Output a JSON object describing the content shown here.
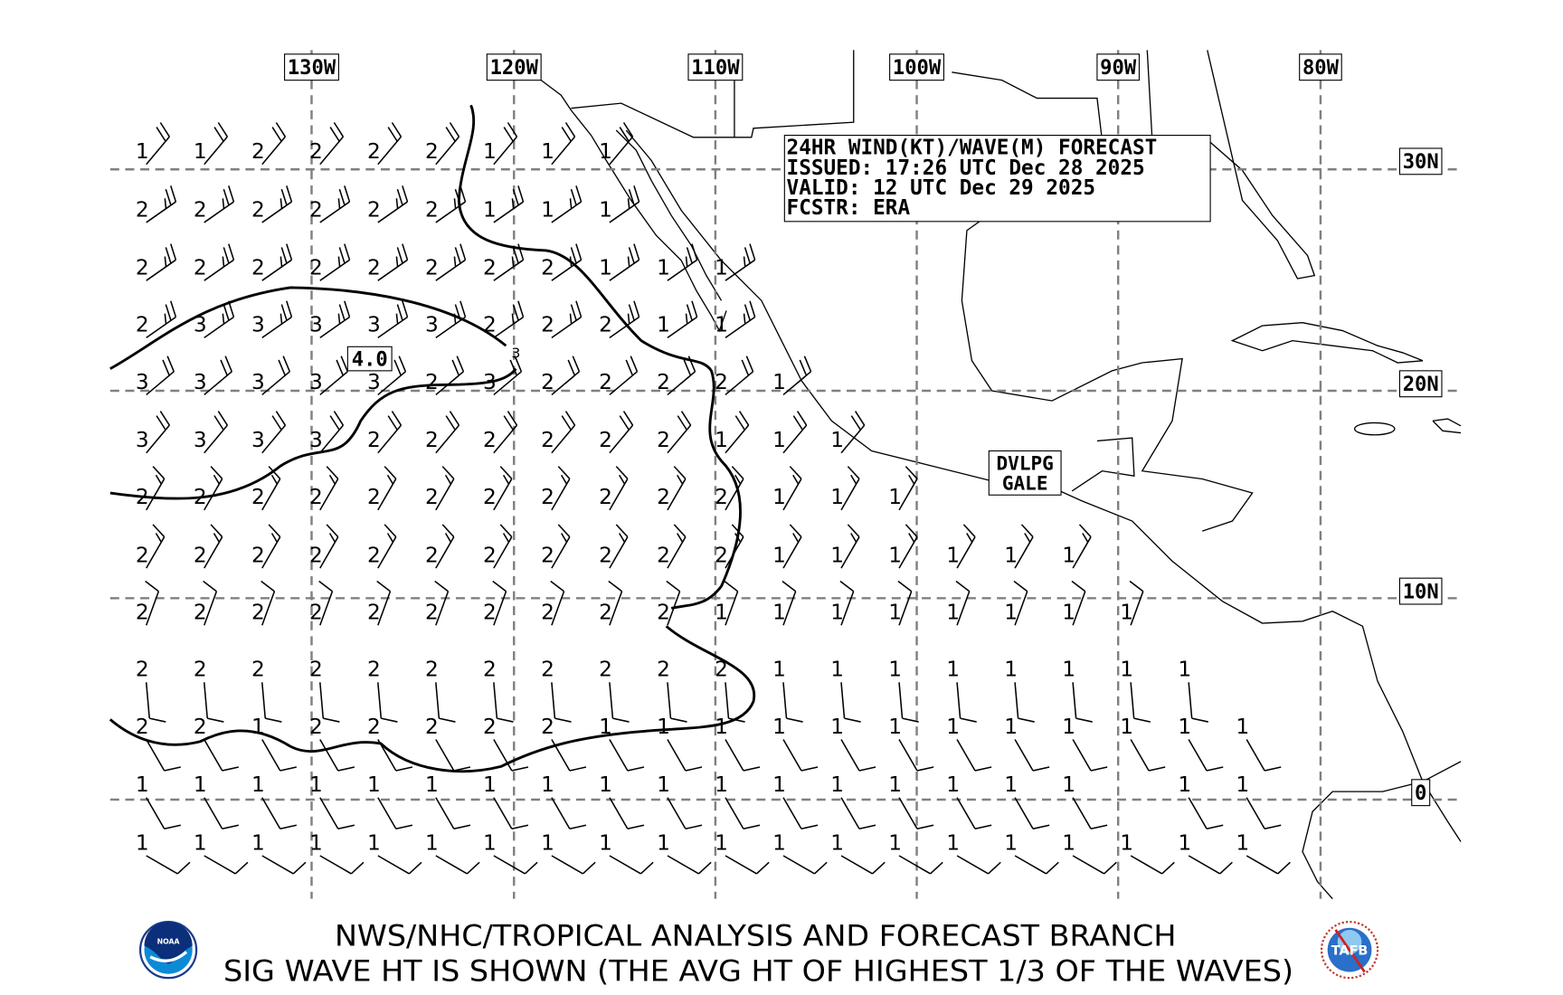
{
  "info_box": {
    "line1": "24HR WIND(KT)/WAVE(M) FORECAST",
    "line2": "ISSUED: 17:26 UTC Dec 28 2025",
    "line3": "VALID: 12 UTC Dec 29 2025",
    "line4": "FCSTR: ERA"
  },
  "longitude_labels": [
    "130W",
    "120W",
    "110W",
    "100W",
    "90W",
    "80W"
  ],
  "latitude_labels": [
    "30N",
    "20N",
    "10N",
    "0"
  ],
  "max_wave_label": "4.0",
  "contour_label": "3",
  "warning": {
    "line1": "DVLPG",
    "line2": "GALE"
  },
  "footer": {
    "line1": "NWS/NHC/TROPICAL ANALYSIS AND FORECAST BRANCH",
    "line2": "SIG WAVE HT IS SHOWN (THE AVG HT OF HIGHEST 1/3 OF THE WAVES)"
  },
  "logos": {
    "left": "NOAA",
    "right": "TAFB"
  },
  "wave_heights": [
    [
      1,
      1,
      2,
      2,
      2,
      2,
      1,
      1,
      1
    ],
    [
      2,
      2,
      2,
      2,
      2,
      2,
      1,
      1,
      1
    ],
    [
      2,
      2,
      2,
      2,
      2,
      2,
      2,
      2,
      1,
      1,
      1
    ],
    [
      2,
      3,
      3,
      3,
      3,
      3,
      2,
      2,
      2,
      1,
      1
    ],
    [
      3,
      3,
      3,
      3,
      3,
      2,
      3,
      2,
      2,
      2,
      2,
      1
    ],
    [
      3,
      3,
      3,
      3,
      2,
      2,
      2,
      2,
      2,
      2,
      1,
      1,
      1
    ],
    [
      2,
      2,
      2,
      2,
      2,
      2,
      2,
      2,
      2,
      2,
      2,
      1,
      1,
      1
    ],
    [
      2,
      2,
      2,
      2,
      2,
      2,
      2,
      2,
      2,
      2,
      2,
      1,
      1,
      1,
      1,
      1,
      1
    ],
    [
      2,
      2,
      2,
      2,
      2,
      2,
      2,
      2,
      2,
      2,
      1,
      1,
      1,
      1,
      1,
      1,
      1,
      1
    ],
    [
      2,
      2,
      2,
      2,
      2,
      2,
      2,
      2,
      2,
      2,
      2,
      1,
      1,
      1,
      1,
      1,
      1,
      1,
      1
    ],
    [
      2,
      2,
      1,
      2,
      2,
      2,
      2,
      2,
      1,
      1,
      1,
      1,
      1,
      1,
      1,
      1,
      1,
      1,
      1,
      1
    ],
    [
      1,
      1,
      1,
      1,
      1,
      1,
      1,
      1,
      1,
      1,
      1,
      1,
      1,
      1,
      1,
      1,
      1,
      null,
      1,
      1
    ],
    [
      1,
      1,
      1,
      1,
      1,
      1,
      1,
      1,
      1,
      1,
      1,
      1,
      1,
      1,
      1,
      1,
      1,
      1,
      1,
      1
    ]
  ],
  "wind_rows": [
    {
      "dir": 40,
      "kt": 20
    },
    {
      "dir": 55,
      "kt": 25
    },
    {
      "dir": 55,
      "kt": 25
    },
    {
      "dir": 55,
      "kt": 25
    },
    {
      "dir": 50,
      "kt": 20
    },
    {
      "dir": 40,
      "kt": 20
    },
    {
      "dir": 30,
      "kt": 15
    },
    {
      "dir": 30,
      "kt": 15
    },
    {
      "dir": 20,
      "kt": 10
    },
    {
      "dir": 175,
      "kt": 10
    },
    {
      "dir": 150,
      "kt": 10
    },
    {
      "dir": 150,
      "kt": 10
    },
    {
      "dir": 120,
      "kt": 10
    }
  ]
}
